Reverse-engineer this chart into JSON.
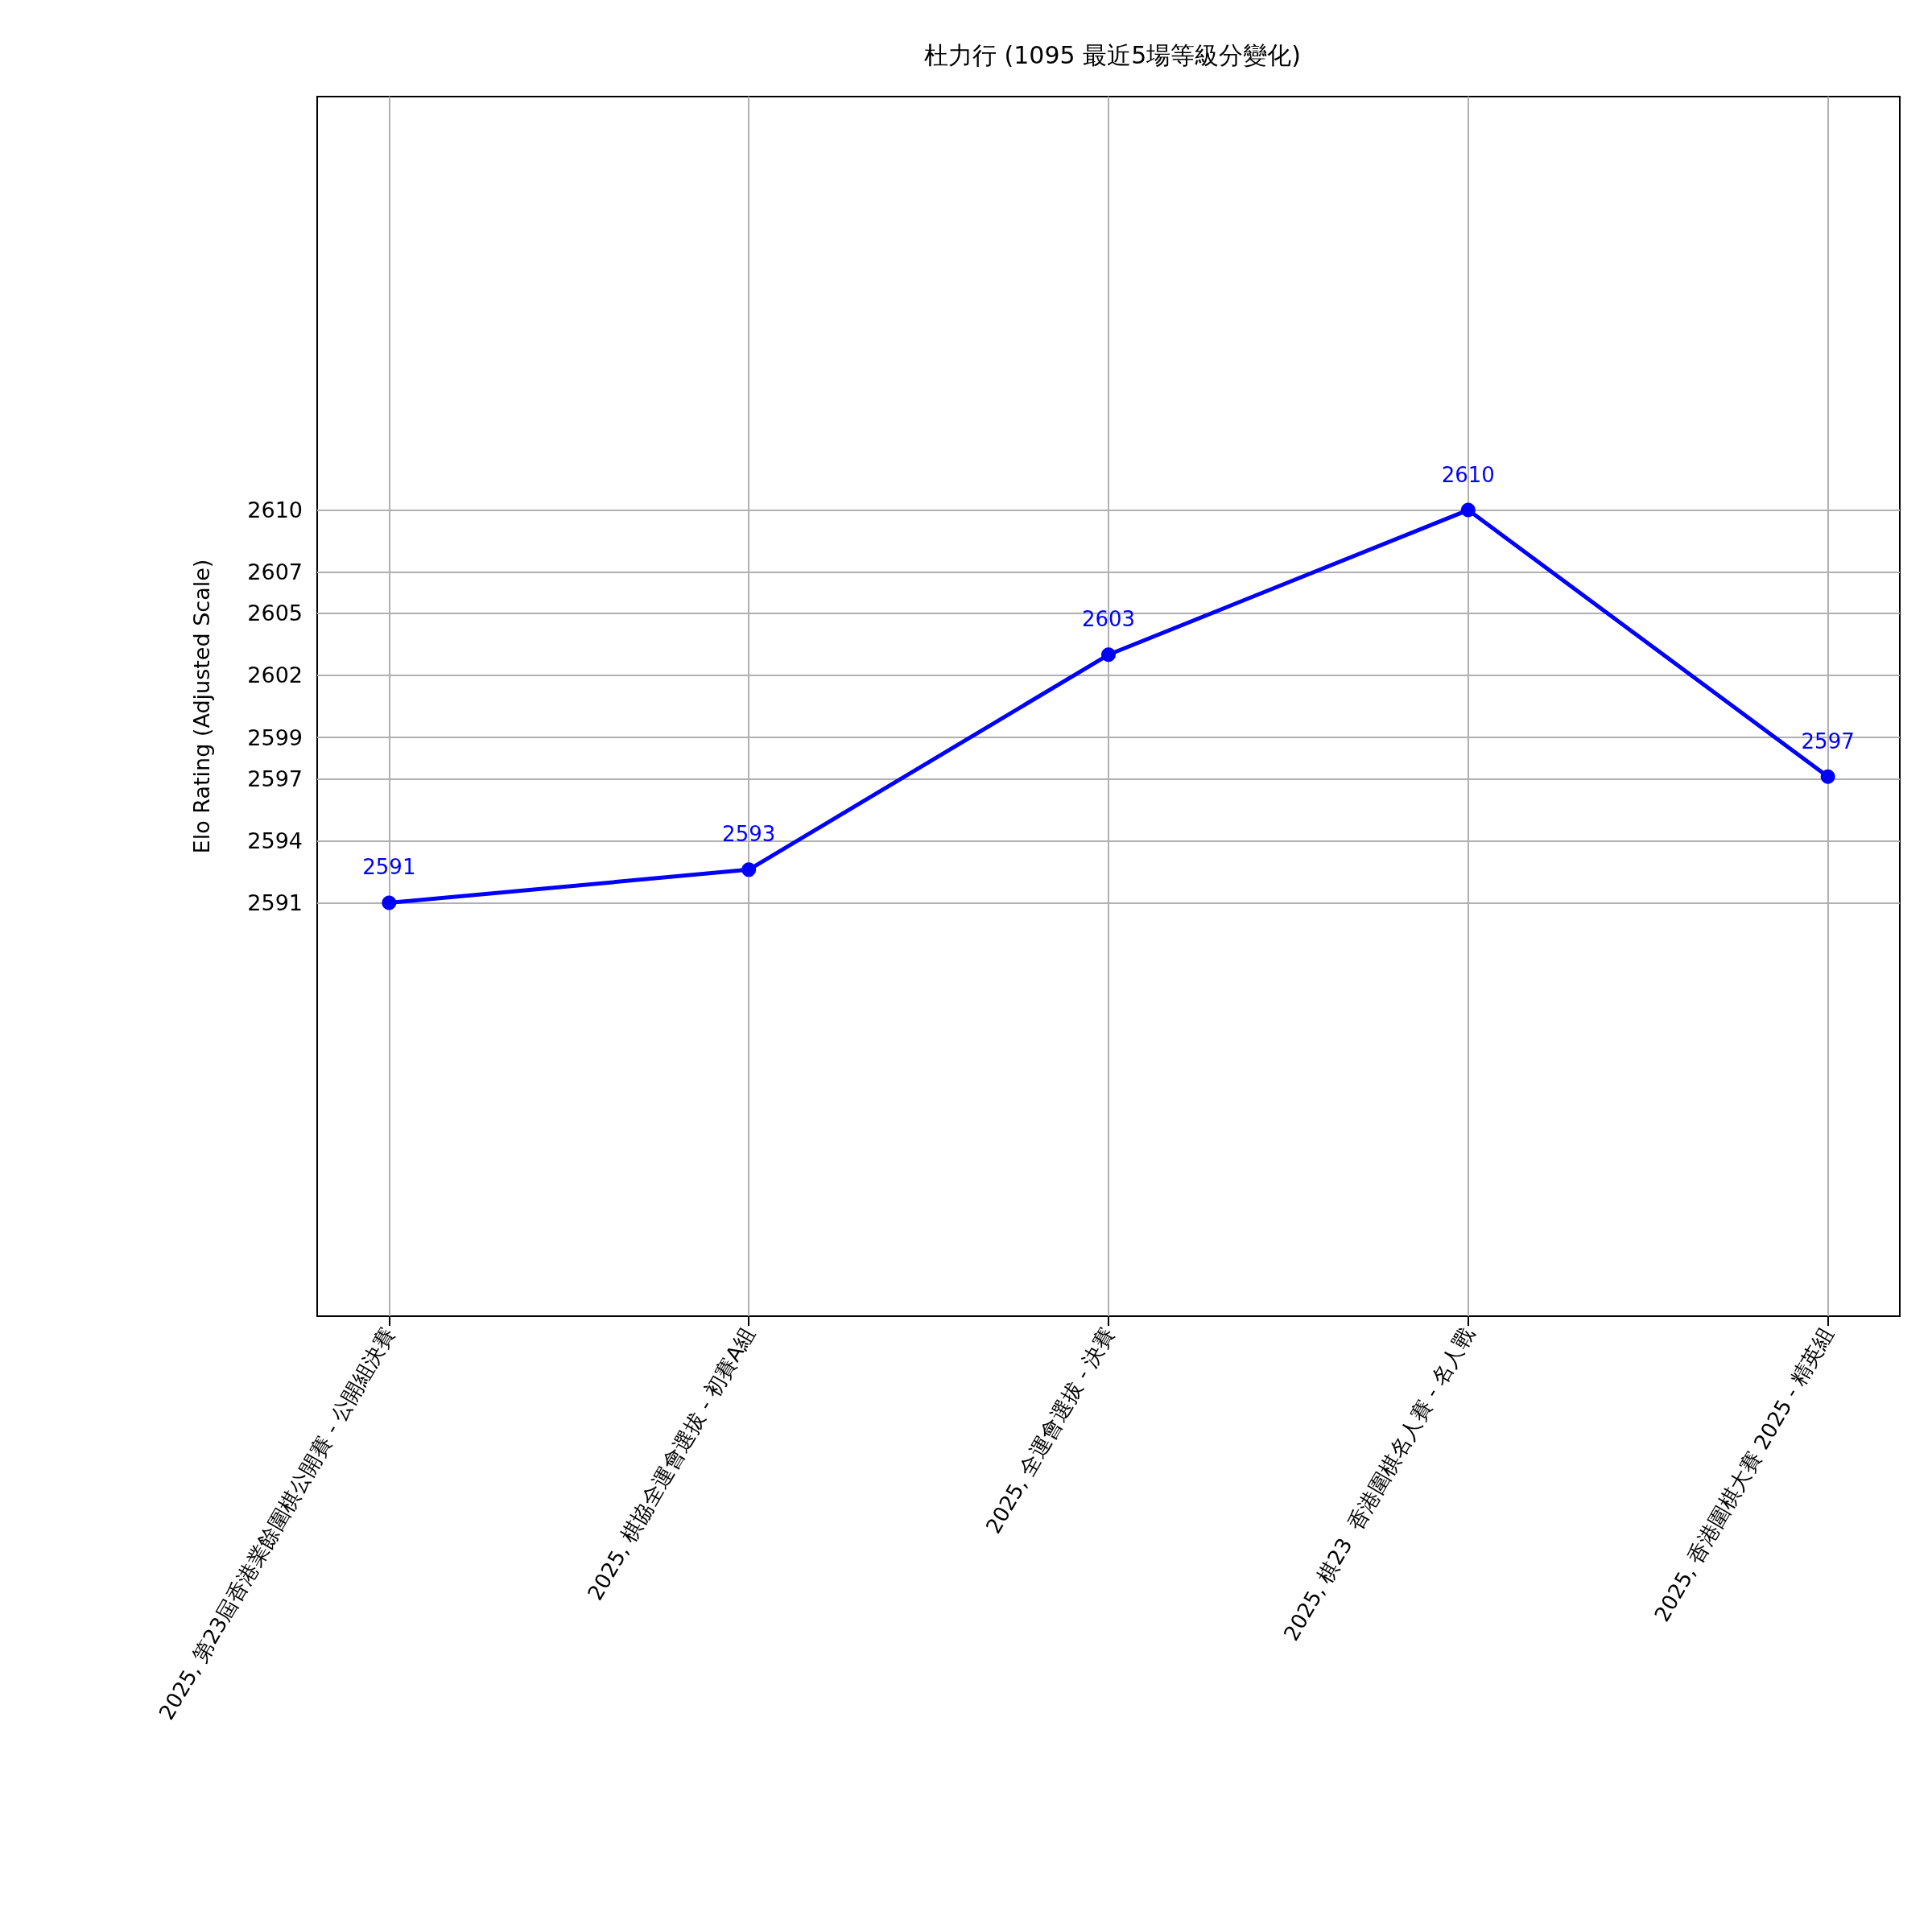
{
  "chart_data": {
    "type": "line",
    "title": "杜力行 (1095 最近5場等級分變化)",
    "ylabel": "Elo Rating (Adjusted Scale)",
    "categories": [
      "2025, 第23屆香港業餘圍棋公開賽 - 公開組決賽",
      "2025, 棋協全運會選拔 - 初賽A組",
      "2025, 全運會選拔 - 決賽",
      "2025, 棋23  香港圍棋名人賽 - 名人戰",
      "2025, 香港圍棋大賽 2025 - 精英組"
    ],
    "series": [
      {
        "color": "#0000ff",
        "values": [
          2591,
          2592.6,
          2603,
          2610,
          2597.1
        ],
        "value_labels": [
          "2591",
          "2593",
          "2603",
          "2610",
          "2597"
        ]
      }
    ],
    "ylim": [
      2571,
      2630
    ],
    "yticks": [
      2591,
      2594,
      2597,
      2599,
      2602,
      2605,
      2607,
      2610
    ],
    "grid": true,
    "marker": "circle",
    "line_style": "solid"
  }
}
